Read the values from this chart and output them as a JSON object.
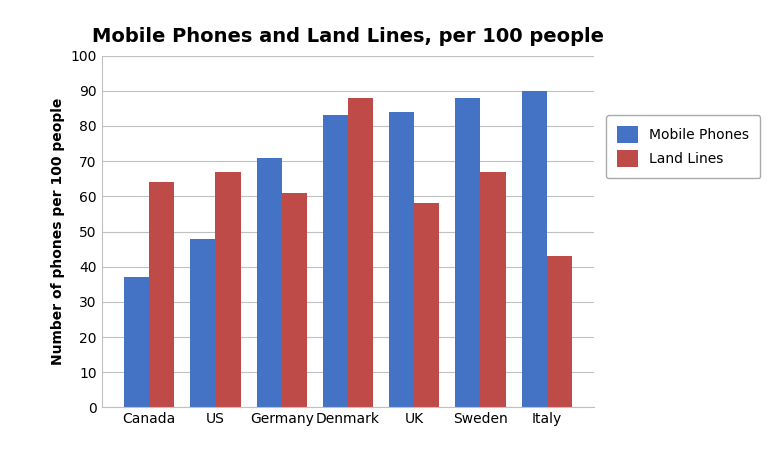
{
  "title": "Mobile Phones and Land Lines, per 100 people",
  "ylabel": "Number of phones per 100 people",
  "categories": [
    "Canada",
    "US",
    "Germany",
    "Denmark",
    "UK",
    "Sweden",
    "Italy"
  ],
  "mobile_phones": [
    37,
    48,
    71,
    83,
    84,
    88,
    90
  ],
  "land_lines": [
    64,
    67,
    61,
    88,
    58,
    67,
    43
  ],
  "mobile_color": "#4472C4",
  "landline_color": "#BE4B48",
  "ylim": [
    0,
    100
  ],
  "yticks": [
    0,
    10,
    20,
    30,
    40,
    50,
    60,
    70,
    80,
    90,
    100
  ],
  "legend_labels": [
    "Mobile Phones",
    "Land Lines"
  ],
  "bar_width": 0.38,
  "background_color": "#FFFFFF",
  "grid_color": "#C0C0C0",
  "title_fontsize": 14,
  "label_fontsize": 10,
  "tick_fontsize": 10,
  "legend_fontsize": 10
}
